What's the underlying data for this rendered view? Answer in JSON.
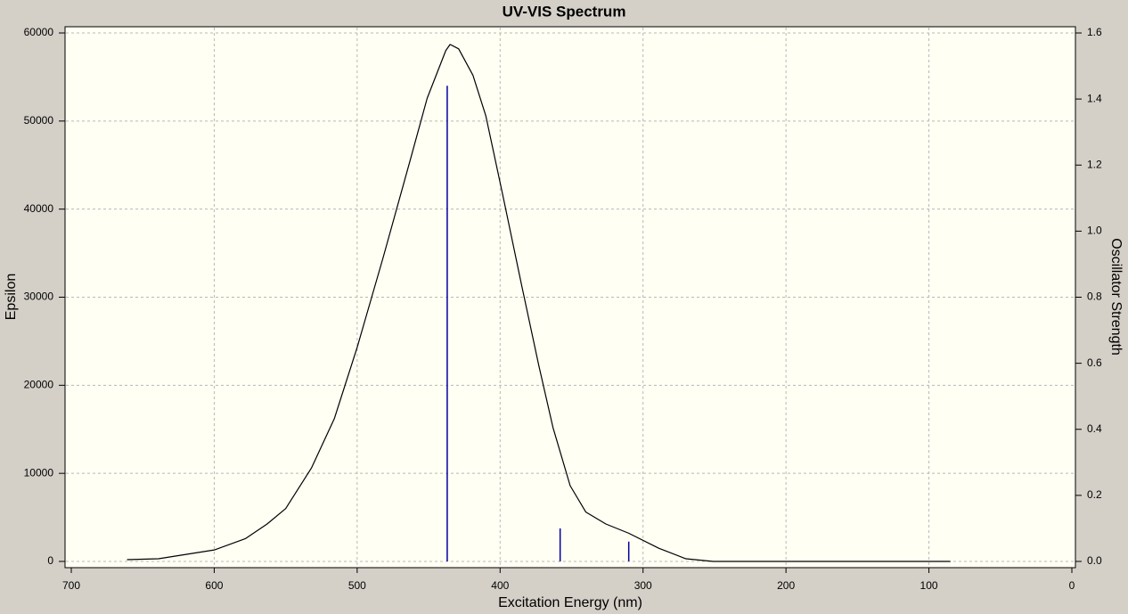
{
  "chart_data": {
    "type": "line",
    "title": "UV-VIS Spectrum",
    "xlabel": "Excitation Energy (nm)",
    "ylabel": "Epsilon",
    "y2label": "Oscillator Strength",
    "xlim": [
      700,
      0
    ],
    "xticks": [
      700,
      600,
      500,
      400,
      300,
      200,
      100,
      0
    ],
    "ylim": [
      0,
      60000
    ],
    "yticks": [
      0,
      10000,
      20000,
      30000,
      40000,
      50000,
      60000
    ],
    "y2lim": [
      0,
      1.6
    ],
    "y2ticks": [
      {
        "value": 0,
        "label": "0.0"
      },
      {
        "value": 0.2,
        "label": "0.2"
      },
      {
        "value": 0.4,
        "label": "0.4"
      },
      {
        "value": 0.6,
        "label": "0.6"
      },
      {
        "value": 0.8,
        "label": "0.8"
      },
      {
        "value": 1,
        "label": "1.0"
      },
      {
        "value": 1.2,
        "label": "1.2"
      },
      {
        "value": 1.4,
        "label": "1.4"
      },
      {
        "value": 1.6,
        "label": "1.6"
      }
    ],
    "grid": true,
    "series": [
      {
        "color": "#000000",
        "x": [
          661,
          639,
          600,
          578,
          563,
          550,
          532,
          516,
          500,
          482,
          463,
          451,
          438,
          435,
          429,
          419,
          410,
          398,
          385,
          373,
          363,
          351,
          340,
          326,
          310,
          289,
          270,
          251,
          85
        ],
        "values": [
          200,
          300,
          1300,
          2600,
          4250,
          6000,
          10600,
          16200,
          24300,
          34400,
          45500,
          52600,
          58000,
          58700,
          58200,
          55200,
          50600,
          41500,
          31400,
          22300,
          15200,
          8600,
          5600,
          4250,
          3200,
          1500,
          300,
          0,
          0
        ]
      },
      {
        "color": "#0000a0",
        "axis": "y2",
        "style": "stick",
        "x": [
          437,
          358,
          310
        ],
        "values": [
          1.44,
          0.1,
          0.06
        ]
      }
    ]
  }
}
